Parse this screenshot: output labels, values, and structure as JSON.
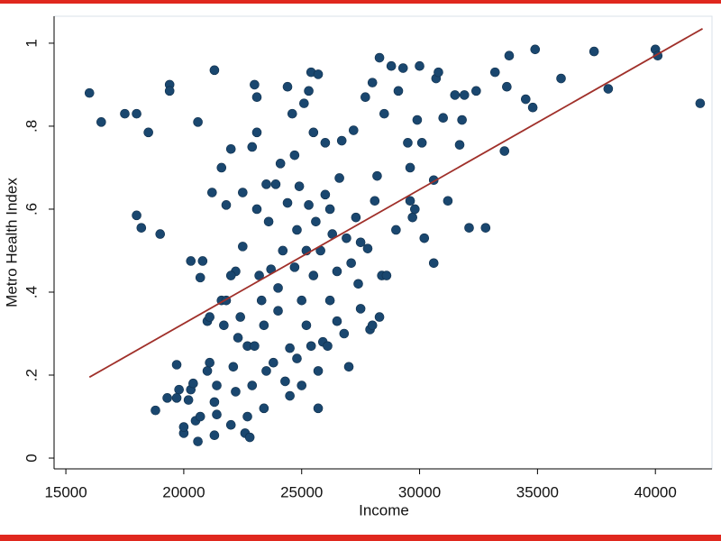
{
  "chart_data": {
    "type": "scatter",
    "xlabel": "Income",
    "ylabel": "Metro Health Index",
    "xlim": [
      14500,
      42400
    ],
    "ylim": [
      -0.026,
      1.065
    ],
    "xticks": [
      15000,
      20000,
      25000,
      30000,
      35000,
      40000
    ],
    "yticks": [
      0,
      {
        "value": 0.2,
        "label": ".2"
      },
      {
        "value": 0.4,
        "label": ".4"
      },
      {
        "value": 0.6,
        "label": ".6"
      },
      {
        "value": 0.8,
        "label": ".8"
      },
      1
    ],
    "grid": false,
    "series": [
      {
        "color": "#1a476f",
        "x": [
          16000,
          16500,
          17500,
          18000,
          18500,
          19400,
          19400,
          20600,
          21300,
          18000,
          18200,
          19000,
          18800,
          19300,
          19700,
          19800,
          19700,
          20000,
          20000,
          20200,
          20300,
          20400,
          20300,
          20800,
          20700,
          20600,
          20500,
          20700,
          21000,
          21100,
          21000,
          21200,
          21100,
          21300,
          21400,
          21400,
          21300,
          21600,
          21600,
          21800,
          21700,
          21800,
          22000,
          22000,
          22100,
          22200,
          22200,
          22400,
          22300,
          22500,
          22500,
          22600,
          22700,
          22700,
          22800,
          22900,
          22900,
          23000,
          23100,
          23100,
          23100,
          23200,
          23300,
          23400,
          23400,
          23500,
          23600,
          23700,
          23800,
          23900,
          24000,
          24100,
          24200,
          24300,
          24400,
          24400,
          24500,
          24500,
          24600,
          24700,
          24800,
          24800,
          24900,
          25000,
          25000,
          25100,
          25200,
          25200,
          25300,
          25300,
          25400,
          25400,
          25500,
          25500,
          25600,
          25700,
          25700,
          25800,
          25900,
          26000,
          26000,
          26100,
          26200,
          26300,
          26500,
          26600,
          26700,
          26800,
          26900,
          27000,
          27200,
          27300,
          27400,
          27500,
          27500,
          27700,
          27800,
          27900,
          28000,
          28100,
          28200,
          28300,
          28300,
          28400,
          28500,
          28600,
          28800,
          29000,
          29100,
          29300,
          29500,
          29600,
          29600,
          29700,
          29800,
          29900,
          30000,
          30100,
          30200,
          30600,
          30600,
          30700,
          30800,
          31000,
          31200,
          31500,
          31700,
          31800,
          31900,
          32100,
          32400,
          32800,
          33200,
          33600,
          33700,
          33800,
          34500,
          34800,
          34900,
          36000,
          37400,
          38000,
          40000,
          40100,
          41900,
          23500,
          24000,
          26500,
          27100,
          22000,
          23000,
          25700,
          24700,
          26200,
          28000
        ],
        "values": [
          0.88,
          0.81,
          0.83,
          0.83,
          0.785,
          0.9,
          0.885,
          0.81,
          0.935,
          0.585,
          0.555,
          0.54,
          0.115,
          0.145,
          0.225,
          0.165,
          0.145,
          0.06,
          0.075,
          0.14,
          0.165,
          0.18,
          0.475,
          0.475,
          0.435,
          0.04,
          0.09,
          0.1,
          0.33,
          0.34,
          0.21,
          0.64,
          0.23,
          0.055,
          0.175,
          0.105,
          0.135,
          0.38,
          0.7,
          0.61,
          0.32,
          0.38,
          0.745,
          0.08,
          0.22,
          0.16,
          0.45,
          0.34,
          0.29,
          0.64,
          0.51,
          0.06,
          0.1,
          0.27,
          0.05,
          0.175,
          0.75,
          0.9,
          0.785,
          0.87,
          0.6,
          0.44,
          0.38,
          0.32,
          0.12,
          0.21,
          0.57,
          0.455,
          0.23,
          0.66,
          0.355,
          0.71,
          0.5,
          0.185,
          0.895,
          0.615,
          0.265,
          0.15,
          0.83,
          0.46,
          0.55,
          0.24,
          0.655,
          0.38,
          0.175,
          0.855,
          0.5,
          0.32,
          0.885,
          0.61,
          0.93,
          0.27,
          0.44,
          0.785,
          0.57,
          0.925,
          0.12,
          0.5,
          0.28,
          0.76,
          0.635,
          0.27,
          0.38,
          0.54,
          0.45,
          0.675,
          0.765,
          0.3,
          0.53,
          0.22,
          0.79,
          0.58,
          0.42,
          0.52,
          0.36,
          0.87,
          0.505,
          0.31,
          0.905,
          0.62,
          0.68,
          0.965,
          0.34,
          0.44,
          0.83,
          0.44,
          0.945,
          0.55,
          0.885,
          0.94,
          0.76,
          0.62,
          0.7,
          0.58,
          0.6,
          0.815,
          0.945,
          0.76,
          0.53,
          0.47,
          0.67,
          0.915,
          0.93,
          0.82,
          0.62,
          0.875,
          0.755,
          0.815,
          0.875,
          0.555,
          0.885,
          0.555,
          0.93,
          0.74,
          0.895,
          0.97,
          0.865,
          0.845,
          0.985,
          0.915,
          0.98,
          0.89,
          0.985,
          0.97,
          0.855,
          0.66,
          0.41,
          0.33,
          0.47,
          0.44,
          0.27,
          0.21,
          0.73,
          0.6,
          0.32
        ]
      }
    ],
    "fit_line": {
      "color": "#a0302a",
      "x": [
        16000,
        42000
      ],
      "y": [
        0.195,
        1.035
      ]
    }
  }
}
